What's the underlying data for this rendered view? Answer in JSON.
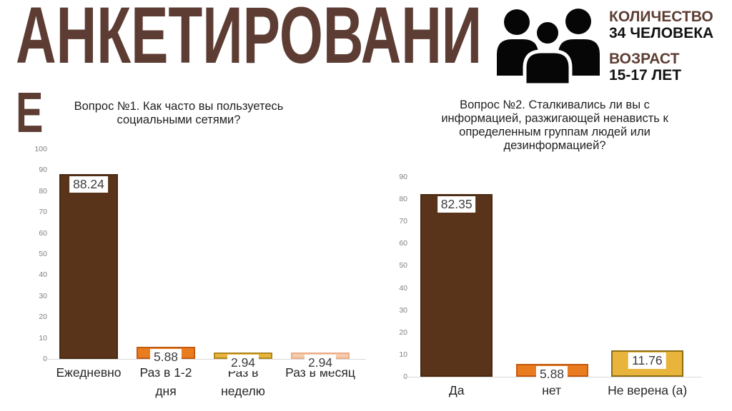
{
  "slide": {
    "title": {
      "line1": "АНКЕТИРОВАНИ",
      "line2": "Е",
      "full_text": "АНКЕТИРОВАНИЕ",
      "color": "#5D3D33"
    }
  },
  "header_stats": {
    "icon": "people-group-icon",
    "icon_color": "#060606",
    "label_color": "#5D3D33",
    "items": [
      {
        "label": "КОЛИЧЕСТВО",
        "value": "34 ЧЕЛОВЕКА"
      },
      {
        "label": "ВОЗРАСТ",
        "value": "15-17 ЛЕТ"
      }
    ]
  },
  "chart_data": [
    {
      "type": "bar",
      "title": "Вопрос №1. Как часто вы пользуетесь\nсоциальными сетями?",
      "categories": [
        "Ежедневно",
        "Раз в 1-2\nдня",
        "Раз в\nнеделю",
        "Раз в месяц"
      ],
      "values": [
        88.24,
        5.88,
        2.94,
        2.94
      ],
      "data_labels": [
        "88.24",
        "5.88",
        "2.94",
        "2.94"
      ],
      "bar_fills": [
        "#59331A",
        "#E87C1F",
        "#E8B43C",
        "#F5CBAD"
      ],
      "bar_borders": [
        "#4A2A12",
        "#C55A11",
        "#B1871E",
        "#ECAE87"
      ],
      "xlabel": "",
      "ylabel": "",
      "ylim": [
        0,
        100
      ],
      "ytick_step": 10,
      "grid": false,
      "legend": null,
      "data_label_position": "inside-end",
      "axis_color": "#d9d9d9",
      "tick_color": "#808080"
    },
    {
      "type": "bar",
      "title": "Вопрос №2. Сталкивались ли вы с\nинформацией, разжигающей ненависть к\nопределенным группам людей или\nдезинформацией?",
      "categories": [
        "Да",
        "нет",
        "Не верена (а)"
      ],
      "values": [
        82.35,
        5.88,
        11.76
      ],
      "data_labels": [
        "82.35",
        "5.88",
        "11.76"
      ],
      "bar_fills": [
        "#59331A",
        "#E87C1F",
        "#E8B43C"
      ],
      "bar_borders": [
        "#4A2A12",
        "#C55A11",
        "#8F6D14"
      ],
      "xlabel": "",
      "ylabel": "",
      "ylim": [
        0,
        90
      ],
      "ytick_step": 10,
      "grid": false,
      "legend": null,
      "data_label_position": "inside-end",
      "axis_color": "#d9d9d9",
      "tick_color": "#808080"
    }
  ]
}
